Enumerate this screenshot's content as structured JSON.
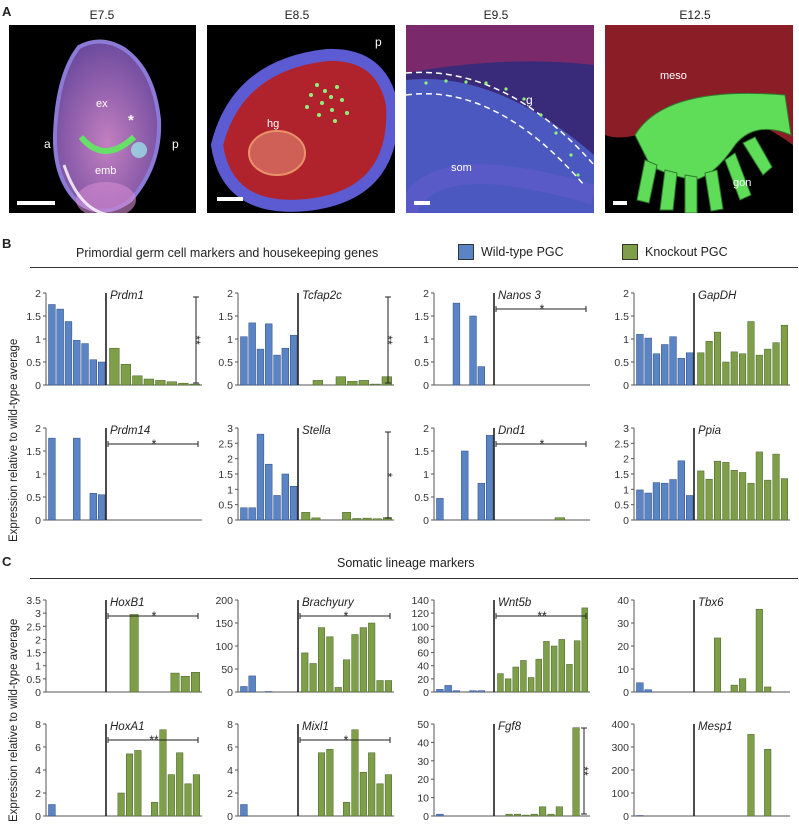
{
  "panels": {
    "A": {
      "letter": "A",
      "stages": [
        "E7.5",
        "E8.5",
        "E9.5",
        "E12.5"
      ],
      "image_labels": {
        "e75": {
          "ex": "ex",
          "star": "*",
          "a": "a",
          "p": "p",
          "emb": "emb"
        },
        "e85": {
          "p": "p",
          "hg": "hg"
        },
        "e95": {
          "g": "g",
          "som": "som"
        },
        "e125": {
          "meso": "meso",
          "gon": "gon"
        }
      }
    },
    "B": {
      "letter": "B",
      "title": "Primordial germ cell markers and housekeeping genes",
      "ylabel": "Expression relative to wild-type average"
    },
    "C": {
      "letter": "C",
      "title": "Somatic lineage markers",
      "ylabel": "Expression relative to wild-type average"
    }
  },
  "legend": {
    "wt_label": "Wild-type PGC",
    "ko_label": "Knockout PGC",
    "wt_color": "#5b84c4",
    "ko_color": "#7e9e48"
  },
  "chart_data": [
    {
      "type": "bar",
      "gene": "Prdm1",
      "ylim": [
        0,
        2
      ],
      "yticks": [
        "0",
        "0.5",
        "1",
        "1.5",
        "2"
      ],
      "series": [
        {
          "name": "Wild-type PGC",
          "values": [
            1.75,
            1.65,
            1.38,
            0.97,
            0.9,
            0.55,
            0.5
          ]
        },
        {
          "name": "Knockout PGC",
          "values": [
            0.8,
            0.45,
            0.2,
            0.13,
            0.1,
            0.07,
            0.04,
            0.02
          ]
        }
      ],
      "significance": "**",
      "sig_style": "vertical"
    },
    {
      "type": "bar",
      "gene": "Tcfap2c",
      "ylim": [
        0,
        2
      ],
      "yticks": [
        "0",
        "0.5",
        "1",
        "1.5",
        "2"
      ],
      "series": [
        {
          "name": "Wild-type PGC",
          "values": [
            1.05,
            1.35,
            0.78,
            1.33,
            0.65,
            0.8,
            1.08
          ]
        },
        {
          "name": "Knockout PGC",
          "values": [
            0,
            0.1,
            0,
            0.18,
            0.08,
            0.1,
            0.02,
            0.18
          ]
        }
      ],
      "significance": "**",
      "sig_style": "vertical"
    },
    {
      "type": "bar",
      "gene": "Nanos 3",
      "ylim": [
        0,
        2
      ],
      "yticks": [
        "0",
        "0.5",
        "1",
        "1.5",
        "2"
      ],
      "series": [
        {
          "name": "Wild-type PGC",
          "values": [
            0,
            0,
            1.78,
            0,
            1.5,
            0.4,
            0
          ]
        },
        {
          "name": "Knockout PGC",
          "values": [
            0,
            0,
            0,
            0,
            0,
            0,
            0,
            0
          ]
        }
      ],
      "significance": "*",
      "sig_style": "horizontal"
    },
    {
      "type": "bar",
      "gene": "GapDH",
      "ylim": [
        0,
        2
      ],
      "yticks": [
        "0",
        "0.5",
        "1",
        "1.5",
        "2"
      ],
      "series": [
        {
          "name": "Wild-type PGC",
          "values": [
            1.1,
            1.02,
            0.68,
            0.88,
            1.05,
            0.58,
            0.7
          ]
        },
        {
          "name": "Knockout PGC",
          "values": [
            0.7,
            0.95,
            1.15,
            0.5,
            0.72,
            0.68,
            1.38,
            0.65,
            0.78,
            0.92,
            1.3
          ]
        }
      ],
      "significance": "",
      "sig_style": "none"
    },
    {
      "type": "bar",
      "gene": "Prdm14",
      "ylim": [
        0,
        2
      ],
      "yticks": [
        "0",
        "0.5",
        "1",
        "1.5",
        "2"
      ],
      "series": [
        {
          "name": "Wild-type PGC",
          "values": [
            1.78,
            0,
            0,
            1.78,
            0,
            0.58,
            0.55
          ]
        },
        {
          "name": "Knockout PGC",
          "values": [
            0,
            0,
            0,
            0,
            0,
            0,
            0,
            0
          ]
        }
      ],
      "significance": "*",
      "sig_style": "horizontal"
    },
    {
      "type": "bar",
      "gene": "Stella",
      "ylim": [
        0,
        3
      ],
      "yticks": [
        "0",
        "0.5",
        "1",
        "1.5",
        "2",
        "2.5",
        "3"
      ],
      "series": [
        {
          "name": "Wild-type PGC",
          "values": [
            0.4,
            0.4,
            2.8,
            1.82,
            0.8,
            1.5,
            1.1
          ]
        },
        {
          "name": "Knockout PGC",
          "values": [
            0.25,
            0.07,
            0,
            0,
            0.25,
            0.05,
            0.06,
            0.04,
            0.08
          ]
        }
      ],
      "significance": "*",
      "sig_style": "vertical"
    },
    {
      "type": "bar",
      "gene": "Dnd1",
      "ylim": [
        0,
        2
      ],
      "yticks": [
        "0",
        "0.5",
        "1",
        "1.5",
        "2"
      ],
      "series": [
        {
          "name": "Wild-type PGC",
          "values": [
            0.47,
            0,
            0,
            1.5,
            0,
            0.8,
            1.84
          ]
        },
        {
          "name": "Knockout PGC",
          "values": [
            0,
            0,
            0,
            0,
            0,
            0.05,
            0,
            0
          ]
        }
      ],
      "significance": "*",
      "sig_style": "horizontal"
    },
    {
      "type": "bar",
      "gene": "Ppia",
      "ylim": [
        0,
        3
      ],
      "yticks": [
        "0",
        "0.5",
        "1",
        "1.5",
        "2",
        "2.5",
        "3"
      ],
      "series": [
        {
          "name": "Wild-type PGC",
          "values": [
            0.98,
            0.88,
            1.22,
            1.2,
            1.32,
            1.93,
            0.8
          ]
        },
        {
          "name": "Knockout PGC",
          "values": [
            1.6,
            1.33,
            1.92,
            1.88,
            1.62,
            1.55,
            1.2,
            2.22,
            1.3,
            2.15,
            1.35
          ]
        }
      ],
      "significance": "",
      "sig_style": "none"
    },
    {
      "type": "bar",
      "gene": "HoxB1",
      "ylim": [
        0,
        3.5
      ],
      "yticks": [
        "0",
        "0.5",
        "1",
        "1.5",
        "2",
        "2.5",
        "3",
        "3.5"
      ],
      "series": [
        {
          "name": "Wild-type PGC",
          "values": [
            0,
            0,
            0,
            0,
            0,
            0,
            0
          ]
        },
        {
          "name": "Knockout PGC",
          "values": [
            0,
            0,
            2.95,
            0,
            0,
            0,
            0.72,
            0.6,
            0.75
          ]
        }
      ],
      "significance": "*",
      "sig_style": "horizontal"
    },
    {
      "type": "bar",
      "gene": "Brachyury",
      "ylim": [
        0,
        200
      ],
      "yticks": [
        "0",
        "50",
        "100",
        "150",
        "200"
      ],
      "series": [
        {
          "name": "Wild-type PGC",
          "values": [
            12,
            35,
            0,
            1,
            0,
            0,
            0
          ]
        },
        {
          "name": "Knockout PGC",
          "values": [
            85,
            62,
            140,
            120,
            10,
            70,
            125,
            140,
            150,
            25,
            25
          ]
        }
      ],
      "significance": "*",
      "sig_style": "horizontal"
    },
    {
      "type": "bar",
      "gene": "Wnt5b",
      "ylim": [
        0,
        140
      ],
      "yticks": [
        "0",
        "20",
        "40",
        "60",
        "80",
        "100",
        "120",
        "140"
      ],
      "series": [
        {
          "name": "Wild-type PGC",
          "values": [
            4,
            10,
            2,
            0,
            2,
            2,
            0
          ]
        },
        {
          "name": "Knockout PGC",
          "values": [
            28,
            20,
            38,
            48,
            22,
            50,
            77,
            70,
            80,
            42,
            78,
            128
          ]
        }
      ],
      "significance": "**",
      "sig_style": "horizontal"
    },
    {
      "type": "bar",
      "gene": "Tbx6",
      "ylim": [
        0,
        40
      ],
      "yticks": [
        "0",
        "10",
        "20",
        "30",
        "40"
      ],
      "series": [
        {
          "name": "Wild-type PGC",
          "values": [
            4,
            1,
            0,
            0,
            0,
            0,
            0
          ]
        },
        {
          "name": "Knockout PGC",
          "values": [
            0,
            0,
            23.5,
            0,
            3,
            5.8,
            0,
            36,
            2.2,
            0,
            0
          ]
        }
      ],
      "significance": "",
      "sig_style": "none"
    },
    {
      "type": "bar",
      "gene": "HoxA1",
      "ylim": [
        0,
        8
      ],
      "yticks": [
        "0",
        "2",
        "4",
        "6",
        "8"
      ],
      "series": [
        {
          "name": "Wild-type PGC",
          "values": [
            1,
            0,
            0,
            0,
            0,
            0,
            0
          ]
        },
        {
          "name": "Knockout PGC",
          "values": [
            0,
            2,
            5.4,
            5.7,
            0,
            1.2,
            7.5,
            3.6,
            5.5,
            2.8,
            3.6
          ]
        }
      ],
      "significance": "**",
      "sig_style": "horizontal"
    },
    {
      "type": "bar",
      "gene": "Mixl1",
      "ylim": [
        0,
        8
      ],
      "yticks": [
        "0",
        "2",
        "4",
        "6",
        "8"
      ],
      "series": [
        {
          "name": "Wild-type PGC",
          "values": [
            1,
            0,
            0,
            0,
            0,
            0,
            0
          ]
        },
        {
          "name": "Knockout PGC",
          "values": [
            0,
            0,
            5.5,
            5.8,
            0,
            1.2,
            7.5,
            3.8,
            5.5,
            2.8,
            3.6
          ]
        }
      ],
      "significance": "*",
      "sig_style": "horizontal"
    },
    {
      "type": "bar",
      "gene": "Fgf8",
      "ylim": [
        0,
        50
      ],
      "yticks": [
        "0",
        "10",
        "20",
        "30",
        "40",
        "50"
      ],
      "series": [
        {
          "name": "Wild-type PGC",
          "values": [
            1,
            0,
            0,
            0,
            0,
            0,
            0
          ]
        },
        {
          "name": "Knockout PGC",
          "values": [
            0,
            1,
            1,
            0.5,
            1,
            5,
            1,
            5,
            0,
            48,
            0
          ]
        }
      ],
      "significance": "**",
      "sig_style": "vertical"
    },
    {
      "type": "bar",
      "gene": "Mesp1",
      "ylim": [
        0,
        400
      ],
      "yticks": [
        "0",
        "100",
        "200",
        "300",
        "400"
      ],
      "series": [
        {
          "name": "Wild-type PGC",
          "values": [
            2,
            0,
            0,
            0,
            0,
            0,
            0
          ]
        },
        {
          "name": "Knockout PGC",
          "values": [
            0,
            0,
            0,
            0,
            0,
            0,
            355,
            0,
            290,
            0,
            0
          ]
        }
      ],
      "significance": "",
      "sig_style": "none"
    }
  ]
}
